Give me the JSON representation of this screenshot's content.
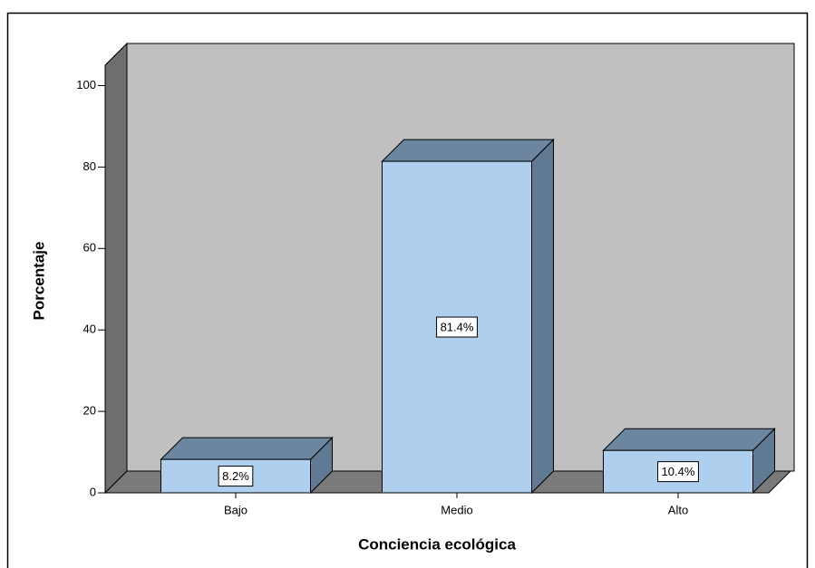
{
  "chart_data": {
    "type": "bar3d",
    "categories": [
      "Bajo",
      "Medio",
      "Alto"
    ],
    "values": [
      8.2,
      81.4,
      10.4
    ],
    "value_labels": [
      "8.2%",
      "81.4%",
      "10.4%"
    ],
    "color": "#aecfee",
    "xlabel": "Conciencia ecológica",
    "ylabel": "Porcentaje",
    "ylim": [
      0,
      105
    ],
    "yticks": [
      0,
      20,
      40,
      60,
      80,
      100
    ]
  }
}
